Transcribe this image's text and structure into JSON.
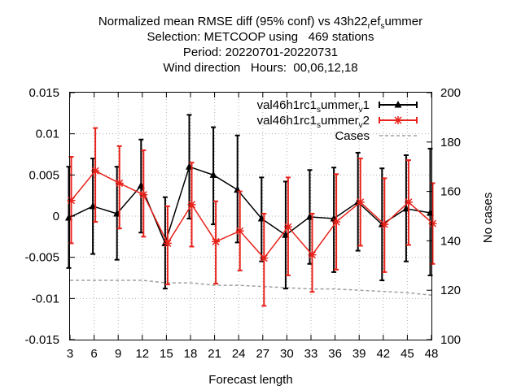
{
  "chart_data": {
    "type": "line",
    "title_lines": [
      "Normalized mean RMSE diff (95% conf) vs 43h22_ref_summer",
      "Selection: METCOOP using   469 stations",
      "Period: 20220701-20220731",
      "Wind direction   Hours:  00,06,12,18"
    ],
    "xlabel": "Forecast length",
    "ylabel_left": "",
    "ylabel_right": "No cases",
    "x": [
      3,
      6,
      9,
      12,
      15,
      18,
      21,
      24,
      27,
      30,
      33,
      36,
      39,
      42,
      45,
      48
    ],
    "xticks": [
      "3",
      "6",
      "9",
      "12",
      "15",
      "18",
      "21",
      "24",
      "27",
      "30",
      "33",
      "36",
      "39",
      "42",
      "45",
      "48"
    ],
    "ylim": [
      -0.015,
      0.015
    ],
    "yticks": [
      "0.015",
      "0.01",
      "0.005",
      "0",
      "-0.005",
      "-0.01",
      "-0.015"
    ],
    "y2lim": [
      100,
      200
    ],
    "y2ticks": [
      "200",
      "180",
      "160",
      "140",
      "120",
      "100"
    ],
    "grid": true,
    "legend_position": "top-right",
    "series": [
      {
        "name": "val46h1rc1_summer_v1",
        "color": "#000000",
        "marker": "triangle",
        "values": [
          -0.0002,
          0.0012,
          0.0003,
          0.0037,
          -0.0033,
          0.006,
          0.005,
          0.0032,
          -0.0003,
          -0.0023,
          -0.0001,
          -0.0003,
          0.0017,
          -0.001,
          0.0009,
          0.0004
        ],
        "err_low": [
          -0.0063,
          -0.0046,
          -0.0053,
          -0.002,
          -0.0088,
          -0.0003,
          -0.001,
          -0.0032,
          -0.0055,
          -0.0088,
          -0.0058,
          -0.0068,
          -0.0042,
          -0.0078,
          -0.0055,
          -0.0072
        ],
        "err_high": [
          0.006,
          0.007,
          0.006,
          0.0093,
          0.0023,
          0.0123,
          0.0108,
          0.0098,
          0.0047,
          0.0042,
          0.0056,
          0.0059,
          0.0077,
          0.0058,
          0.0074,
          0.0082
        ]
      },
      {
        "name": "val46h1rc1_summer_v2",
        "color": "#e8221a",
        "marker": "cross",
        "values": [
          0.0019,
          0.0055,
          0.004,
          0.0026,
          -0.0033,
          0.0014,
          -0.0031,
          -0.0018,
          -0.0051,
          -0.0013,
          -0.0047,
          -0.0007,
          0.0017,
          -0.001,
          0.0017,
          -0.0009
        ],
        "err_low": [
          -0.0033,
          -0.0007,
          -0.0015,
          -0.0025,
          -0.0083,
          -0.0037,
          -0.0082,
          -0.0066,
          -0.0109,
          -0.0072,
          -0.0092,
          -0.0065,
          -0.0036,
          -0.0068,
          -0.0035,
          -0.0058
        ],
        "err_high": [
          0.0072,
          0.0107,
          0.0085,
          0.008,
          0.0012,
          0.0065,
          0.0018,
          0.003,
          0.0003,
          0.0047,
          0.0003,
          0.0051,
          0.007,
          0.0046,
          0.0068,
          0.004
        ]
      },
      {
        "name": "Cases",
        "color": "#a0a0a0",
        "style": "dashed",
        "axis": "right",
        "values": [
          124,
          124,
          124,
          124,
          123,
          123,
          122,
          122,
          121.5,
          121,
          120.5,
          120.5,
          120,
          119.5,
          119,
          118
        ]
      }
    ]
  }
}
